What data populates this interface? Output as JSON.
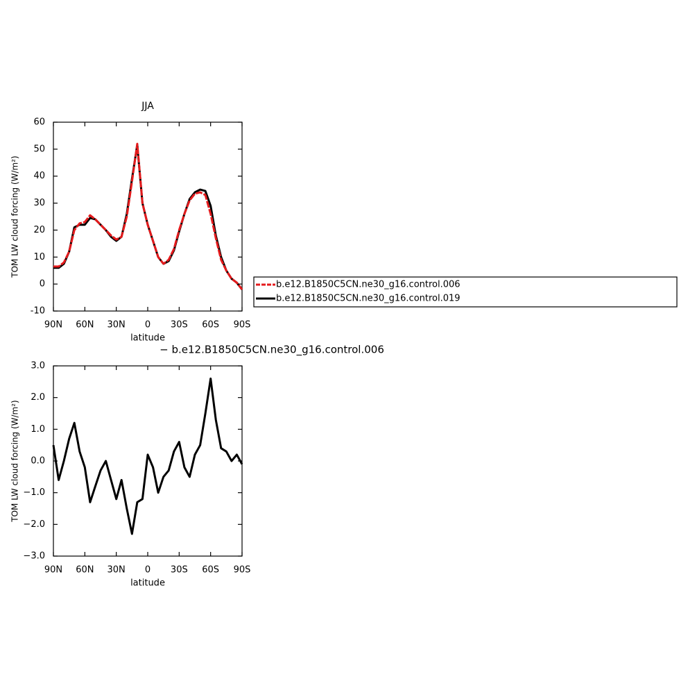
{
  "chart_data": [
    {
      "type": "line",
      "title": "JJA",
      "xlabel": "latitude",
      "ylabel": "TOM LW cloud forcing (W/m²)",
      "x": [
        90,
        85,
        80,
        75,
        70,
        65,
        60,
        55,
        50,
        45,
        40,
        35,
        30,
        25,
        20,
        15,
        10,
        5,
        0,
        -5,
        -10,
        -15,
        -20,
        -25,
        -30,
        -35,
        -40,
        -45,
        -50,
        -55,
        -60,
        -65,
        -70,
        -75,
        -80,
        -85,
        -90
      ],
      "series": [
        {
          "name": "b.e12.B1850C5CN.ne30_g16.control.006",
          "color": "#e41a1c",
          "dash": true,
          "values": [
            6.5,
            6.5,
            8,
            12,
            20,
            22.5,
            23,
            25.5,
            24,
            22,
            20,
            18,
            16.5,
            17.5,
            25,
            38,
            52,
            30,
            22,
            16,
            10,
            7.5,
            9,
            13,
            20,
            26,
            31,
            33.5,
            34,
            33,
            26,
            17,
            9,
            5,
            2,
            0.5,
            -2
          ]
        },
        {
          "name": "b.e12.B1850C5CN.ne30_g16.control.019",
          "color": "#000000",
          "dash": false,
          "values": [
            6,
            6,
            7.5,
            12,
            21,
            22,
            22,
            24.5,
            24,
            22,
            20,
            17.5,
            16,
            17.5,
            26,
            39,
            51.5,
            30,
            22,
            16,
            10,
            7.5,
            8.5,
            12.5,
            19.5,
            26,
            31.5,
            34,
            35,
            34.5,
            29,
            18,
            10,
            5,
            2,
            0.5,
            -2
          ]
        }
      ],
      "xlim": [
        90,
        -90
      ],
      "xticks": [
        {
          "value": 90,
          "label": "90N"
        },
        {
          "value": 60,
          "label": "60N"
        },
        {
          "value": 30,
          "label": "30N"
        },
        0,
        {
          "value": -30,
          "label": "30S"
        },
        {
          "value": -60,
          "label": "60S"
        },
        {
          "value": -90,
          "label": "90S"
        }
      ],
      "ylim": [
        -10,
        60
      ],
      "yticks": [
        -10,
        0,
        10,
        20,
        30,
        40,
        50,
        60
      ],
      "legend": "right"
    },
    {
      "type": "line",
      "title": "− b.e12.B1850C5CN.ne30_g16.control.006",
      "xlabel": "latitude",
      "ylabel": "TOM LW cloud forcing (W/m²)",
      "x": [
        90,
        85,
        80,
        75,
        70,
        65,
        60,
        55,
        50,
        45,
        40,
        35,
        30,
        25,
        20,
        15,
        10,
        5,
        0,
        -5,
        -10,
        -15,
        -20,
        -25,
        -30,
        -35,
        -40,
        -45,
        -50,
        -55,
        -60,
        -65,
        -70,
        -75,
        -80,
        -85,
        -90
      ],
      "series": [
        {
          "color": "#000000",
          "dash": false,
          "values": [
            0.5,
            -0.6,
            0,
            0.7,
            1.2,
            0.3,
            -0.2,
            -1.3,
            -0.8,
            -0.3,
            0,
            -0.6,
            -1.2,
            -0.6,
            -1.5,
            -2.3,
            -1.3,
            -1.2,
            0.2,
            -0.2,
            -1,
            -0.5,
            -0.3,
            0.3,
            0.6,
            -0.2,
            -0.5,
            0.2,
            0.5,
            1.5,
            2.6,
            1.3,
            0.4,
            0.3,
            0,
            0.2,
            -0.1
          ]
        }
      ],
      "xlim": [
        90,
        -90
      ],
      "xticks": [
        {
          "value": 90,
          "label": "90N"
        },
        {
          "value": 60,
          "label": "60N"
        },
        {
          "value": 30,
          "label": "30N"
        },
        0,
        {
          "value": -30,
          "label": "30S"
        },
        {
          "value": -60,
          "label": "60S"
        },
        {
          "value": -90,
          "label": "90S"
        }
      ],
      "ylim": [
        -3,
        3
      ],
      "yticks": [
        {
          "value": -3,
          "label": "−3.0"
        },
        {
          "value": -2,
          "label": "−2.0"
        },
        {
          "value": -1,
          "label": "−1.0"
        },
        {
          "value": 0,
          "label": "0.0"
        },
        {
          "value": 1,
          "label": "1.0"
        },
        {
          "value": 2,
          "label": "2.0"
        },
        {
          "value": 3,
          "label": "3.0"
        }
      ]
    }
  ]
}
